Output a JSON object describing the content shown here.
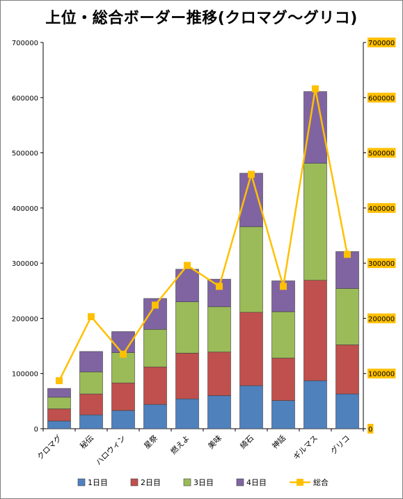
{
  "chart_data": {
    "type": "bar",
    "title": "上位・総合ボーダー推移(クロマグ〜グリコ)",
    "categories": [
      "クロマグ",
      "秘伝",
      "ハロウィン",
      "星祭",
      "燃えよ",
      "美味",
      "綺石",
      "神話",
      "ギルマス",
      "グリコ"
    ],
    "series": [
      {
        "name": "1日目",
        "kind": "stacked-bar",
        "color": "#4f81bd",
        "values": [
          14000,
          25000,
          33000,
          44000,
          54000,
          60000,
          78000,
          51000,
          87000,
          63000
        ]
      },
      {
        "name": "2日目",
        "kind": "stacked-bar",
        "color": "#c0504d",
        "values": [
          22000,
          38000,
          50000,
          68000,
          83000,
          79000,
          133000,
          77000,
          182000,
          89000
        ]
      },
      {
        "name": "3日目",
        "kind": "stacked-bar",
        "color": "#9bbb59",
        "values": [
          21000,
          40000,
          55000,
          68000,
          93000,
          82000,
          155000,
          84000,
          212000,
          102000
        ]
      },
      {
        "name": "4日目",
        "kind": "stacked-bar",
        "color": "#8064a2",
        "values": [
          16000,
          37000,
          38000,
          56000,
          59000,
          50000,
          97000,
          56000,
          130000,
          67000
        ]
      },
      {
        "name": "総合",
        "kind": "line",
        "axis": "right",
        "color": "#ffc000",
        "values": [
          87000,
          203000,
          135000,
          224000,
          296000,
          258000,
          461000,
          258000,
          616000,
          316000
        ]
      }
    ],
    "y_left": {
      "min": 0,
      "max": 700000,
      "ticks": [
        "0",
        "100000",
        "200000",
        "300000",
        "400000",
        "500000",
        "600000",
        "700000"
      ]
    },
    "y_right": {
      "min": 0,
      "max": 700000,
      "ticks": [
        "0",
        "100000",
        "200000",
        "300000",
        "400000",
        "500000",
        "600000",
        "700000"
      ],
      "label_background": "#ffc000"
    },
    "grid": false,
    "legend_position": "bottom",
    "frame_color": "#7f7f7f"
  }
}
